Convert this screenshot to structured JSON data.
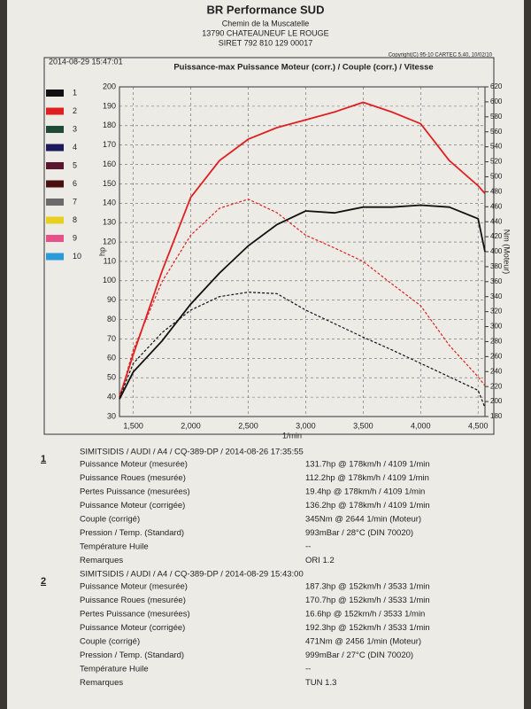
{
  "header": {
    "company": "BR Performance SUD",
    "address1": "Chemin de la Muscatelle",
    "address2": "13790 CHATEAUNEUF LE ROUGE",
    "siret": "SIRET 792 810 129 00017",
    "printed": "2014-08-29 15:47:01",
    "copyright": "Copyright(C) 95-10 CARTEC 5.40, 10/02/10"
  },
  "legend": [
    {
      "label": "1",
      "color": "#111111"
    },
    {
      "label": "2",
      "color": "#e02020"
    },
    {
      "label": "3",
      "color": "#1f4a35"
    },
    {
      "label": "4",
      "color": "#1c1a5a"
    },
    {
      "label": "5",
      "color": "#5a1530"
    },
    {
      "label": "6",
      "color": "#4a1010"
    },
    {
      "label": "7",
      "color": "#6a6a6a"
    },
    {
      "label": "8",
      "color": "#e8d020"
    },
    {
      "label": "9",
      "color": "#e8508a"
    },
    {
      "label": "10",
      "color": "#2a9ad8"
    }
  ],
  "chart_data": {
    "type": "line",
    "title": "Puissance-max Puissance Moteur (corr.) / Couple (corr.) / Vitesse",
    "x_label": "1/min",
    "y_label": "hp",
    "y2_label": "Nm (Moteur)",
    "x": [
      1380,
      1500,
      1750,
      2000,
      2250,
      2500,
      2750,
      3000,
      3250,
      3500,
      3750,
      4000,
      4250,
      4500,
      4560
    ],
    "xlim": [
      1380,
      4560
    ],
    "xticks": [
      {
        "value": 1500,
        "label": "1,500"
      },
      {
        "value": 2000,
        "label": "2,000"
      },
      {
        "value": 2500,
        "label": "2,500"
      },
      {
        "value": 3000,
        "label": "3,000"
      },
      {
        "value": 3500,
        "label": "3,500"
      },
      {
        "value": 4000,
        "label": "4,000"
      },
      {
        "value": 4500,
        "label": "4,500"
      }
    ],
    "ylim": [
      30,
      200
    ],
    "yticks": [
      30,
      40,
      50,
      60,
      70,
      80,
      90,
      100,
      110,
      120,
      130,
      140,
      150,
      160,
      170,
      180,
      190,
      200
    ],
    "y2lim": [
      180,
      620
    ],
    "y2ticks": [
      180,
      200,
      220,
      240,
      260,
      280,
      300,
      320,
      340,
      360,
      380,
      400,
      420,
      440,
      460,
      480,
      500,
      520,
      540,
      560,
      580,
      600,
      620
    ],
    "grid": true,
    "series": [
      {
        "color": "#e02020",
        "dash": false,
        "values": [
          40,
          62,
          105,
          143,
          162,
          173,
          179,
          183,
          187,
          192,
          187,
          181,
          162,
          149,
          145
        ]
      },
      {
        "color": "#e02020",
        "dash": true,
        "axis": "y2",
        "values": [
          204,
          269,
          360,
          422,
          458,
          470,
          452,
          422,
          405,
          387,
          357,
          328,
          275,
          233,
          221
        ]
      },
      {
        "color": "#111111",
        "dash": false,
        "values": [
          39,
          53,
          69,
          88,
          104,
          118,
          129,
          136,
          135,
          138,
          138,
          139,
          138,
          132,
          115
        ]
      },
      {
        "color": "#111111",
        "dash": true,
        "axis": "y2",
        "values": [
          205,
          251,
          292,
          322,
          340,
          346,
          344,
          322,
          304,
          286,
          269,
          251,
          233,
          215,
          192
        ]
      }
    ]
  },
  "results": [
    {
      "index": "1",
      "title": "SIMITSIDIS / AUDI / A4 / CQ-389-DP / 2014-08-26 17:35:55",
      "rows": [
        [
          "Puissance Moteur (mesurée)",
          "131.7hp @ 178km/h / 4109 1/min"
        ],
        [
          "Puissance Roues (mesurée)",
          "112.2hp @ 178km/h / 4109 1/min"
        ],
        [
          "Pertes Puissance (mesurées)",
          "19.4hp @ 178km/h / 4109 1/min"
        ],
        [
          "Puissance Moteur (corrigée)",
          "136.2hp @ 178km/h / 4109 1/min"
        ],
        [
          "Couple (corrigé)",
          "345Nm @ 2644 1/min (Moteur)"
        ],
        [
          "Pression / Temp. (Standard)",
          "993mBar / 28°C   (DIN 70020)"
        ],
        [
          "Température Huile",
          "--"
        ],
        [
          "Remarques",
          "ORI 1.2"
        ]
      ]
    },
    {
      "index": "2",
      "title": "SIMITSIDIS / AUDI / A4 / CQ-389-DP / 2014-08-29 15:43:00",
      "rows": [
        [
          "Puissance Moteur (mesurée)",
          "187.3hp @ 152km/h / 3533 1/min"
        ],
        [
          "Puissance Roues (mesurée)",
          "170.7hp @ 152km/h / 3533 1/min"
        ],
        [
          "Pertes Puissance (mesurées)",
          "16.6hp @ 152km/h / 3533 1/min"
        ],
        [
          "Puissance Moteur (corrigée)",
          "192.3hp @ 152km/h / 3533 1/min"
        ],
        [
          "Couple (corrigé)",
          "471Nm @ 2456 1/min (Moteur)"
        ],
        [
          "Pression / Temp. (Standard)",
          "999mBar / 27°C   (DIN 70020)"
        ],
        [
          "Température Huile",
          "--"
        ],
        [
          "Remarques",
          "TUN 1.3"
        ]
      ]
    }
  ]
}
